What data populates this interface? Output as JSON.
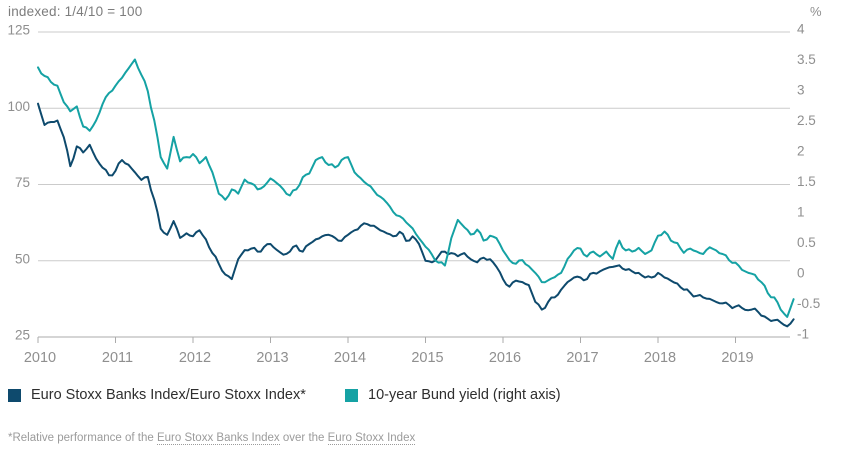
{
  "header": {
    "left_axis_note": "indexed: 1/4/10 = 100",
    "right_axis_unit": "%"
  },
  "legend": [
    {
      "label": "Euro Stoxx Banks Index/Euro Stoxx Index*",
      "color": "#0E4A6D"
    },
    {
      "label": "10-year Bund yield (right axis)",
      "color": "#15A2A4"
    }
  ],
  "footnote": {
    "prefix": "*Relative performance of the ",
    "link1": "Euro Stoxx Banks Index",
    "middle": " over the ",
    "link2": "Euro Stoxx Index"
  },
  "chart_data": {
    "type": "line",
    "title": "indexed: 1/4/10 = 100",
    "x_start_year": 2010.0,
    "x_step_years": 0.0833333,
    "x_tick_labels": [
      "2010",
      "2011",
      "2012",
      "2013",
      "2014",
      "2015",
      "2016",
      "2017",
      "2018",
      "2019"
    ],
    "left_axis": {
      "ticks": [
        "125",
        "100",
        "75",
        "50",
        "25"
      ],
      "range": [
        25,
        125
      ]
    },
    "right_axis": {
      "ticks": [
        "4",
        "3.5",
        "3",
        "2.5",
        "2",
        "1.5",
        "1",
        "0.5",
        "0",
        "-0.5",
        "-1"
      ],
      "range": [
        -1,
        4
      ],
      "unit": "%"
    },
    "grid": "horizontal",
    "legend_position": "bottom",
    "colors": {
      "grid": "#cbcbcb",
      "axis": "#ababab",
      "tick_text": "#8f8f8f"
    },
    "series": [
      {
        "name": "Euro Stoxx Banks Index/Euro Stoxx Index*",
        "axis": "left",
        "color": "#0E4A6D",
        "values": [
          101.5,
          94.5,
          95.5,
          96.0,
          90.5,
          81.0,
          87.5,
          85.5,
          88.0,
          83.5,
          80.5,
          78.0,
          79.5,
          83.0,
          81.5,
          79.0,
          76.5,
          77.5,
          70.0,
          60.5,
          58.5,
          63.0,
          57.5,
          59.0,
          58.0,
          60.0,
          57.0,
          52.5,
          49.0,
          45.5,
          44.0,
          50.5,
          53.5,
          54.0,
          53.0,
          54.5,
          55.5,
          53.5,
          52.0,
          53.0,
          55.0,
          53.0,
          55.5,
          57.0,
          58.0,
          58.5,
          57.5,
          56.5,
          58.5,
          60.0,
          61.5,
          62.0,
          61.5,
          60.0,
          59.0,
          58.0,
          59.5,
          56.5,
          58.0,
          55.5,
          50.0,
          49.5,
          51.5,
          53.0,
          52.5,
          51.5,
          52.5,
          50.5,
          49.5,
          51.0,
          50.5,
          48.0,
          44.0,
          41.5,
          43.5,
          43.0,
          42.0,
          36.5,
          34.0,
          36.5,
          38.0,
          40.5,
          43.0,
          44.5,
          44.5,
          44.0,
          46.0,
          46.5,
          47.5,
          48.0,
          48.5,
          47.0,
          46.5,
          46.0,
          44.5,
          44.5,
          46.0,
          44.5,
          43.5,
          42.5,
          40.5,
          39.5,
          38.5,
          38.0,
          37.5,
          36.5,
          36.0,
          35.5,
          35.0,
          34.5,
          33.8,
          34.3,
          32.0,
          31.0,
          30.5,
          29.8,
          28.5,
          30.8
        ]
      },
      {
        "name": "10-year Bund yield (right axis)",
        "axis": "right",
        "color": "#15A2A4",
        "values": [
          3.42,
          3.28,
          3.18,
          3.12,
          2.85,
          2.7,
          2.78,
          2.45,
          2.38,
          2.55,
          2.82,
          3.0,
          3.12,
          3.25,
          3.4,
          3.55,
          3.3,
          3.03,
          2.55,
          1.95,
          1.76,
          2.28,
          1.88,
          1.95,
          2.0,
          1.85,
          1.95,
          1.7,
          1.35,
          1.25,
          1.42,
          1.35,
          1.58,
          1.52,
          1.42,
          1.47,
          1.6,
          1.52,
          1.42,
          1.32,
          1.42,
          1.62,
          1.68,
          1.9,
          1.95,
          1.82,
          1.78,
          1.9,
          1.95,
          1.7,
          1.6,
          1.5,
          1.4,
          1.3,
          1.2,
          1.05,
          0.98,
          0.88,
          0.78,
          0.62,
          0.48,
          0.35,
          0.22,
          0.17,
          0.62,
          0.92,
          0.8,
          0.68,
          0.76,
          0.58,
          0.66,
          0.62,
          0.42,
          0.26,
          0.2,
          0.26,
          0.16,
          0.05,
          -0.1,
          -0.07,
          -0.02,
          0.05,
          0.28,
          0.42,
          0.45,
          0.32,
          0.4,
          0.32,
          0.4,
          0.28,
          0.58,
          0.42,
          0.4,
          0.46,
          0.36,
          0.42,
          0.66,
          0.73,
          0.58,
          0.54,
          0.38,
          0.45,
          0.4,
          0.36,
          0.47,
          0.42,
          0.36,
          0.26,
          0.22,
          0.1,
          0.05,
          0.02,
          -0.1,
          -0.28,
          -0.35,
          -0.55,
          -0.67,
          -0.38
        ]
      }
    ]
  }
}
